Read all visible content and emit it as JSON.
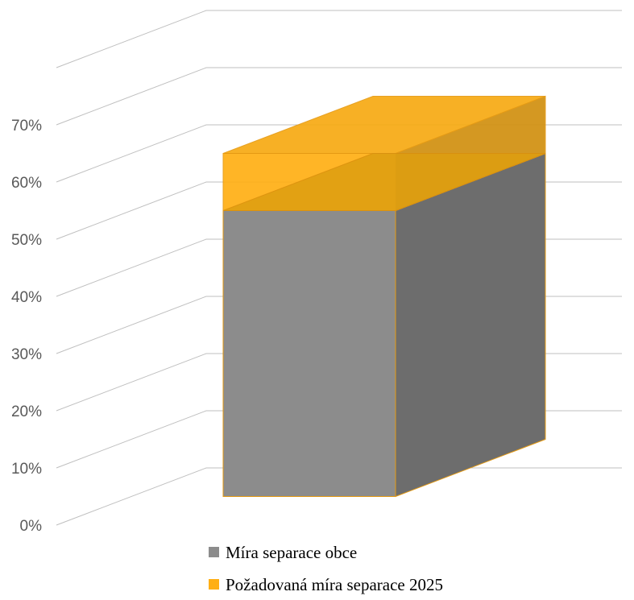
{
  "chart_data": {
    "type": "bar",
    "subtype": "3d-stacked-column",
    "categories": [
      ""
    ],
    "series": [
      {
        "name": "Míra separace obce",
        "values": [
          0.5
        ],
        "color": "#8C8C8C"
      },
      {
        "name": "Požadovaná míra separace 2025",
        "values": [
          0.1
        ],
        "color": "#FFAF14"
      }
    ],
    "ylim": [
      0,
      0.8
    ],
    "yticks": [
      0,
      0.1,
      0.2,
      0.3,
      0.4,
      0.5,
      0.6,
      0.7
    ],
    "ytick_labels": [
      "0%",
      "10%",
      "20%",
      "30%",
      "40%",
      "50%",
      "60%",
      "70%"
    ],
    "title": "",
    "xlabel": "",
    "ylabel": "",
    "grid": true,
    "legend_position": "bottom"
  }
}
